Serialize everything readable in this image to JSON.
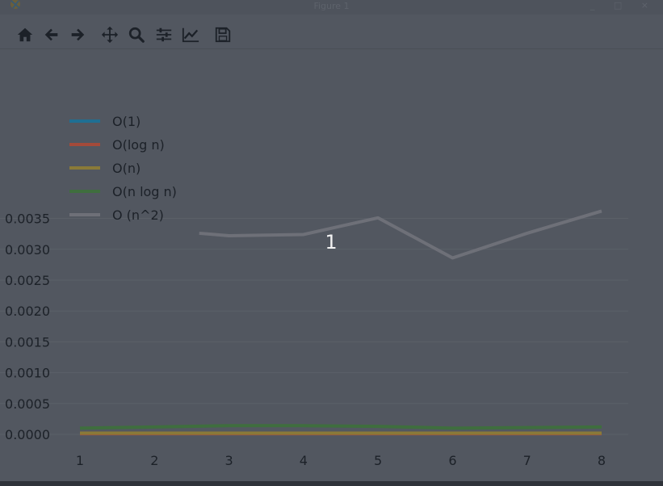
{
  "window": {
    "title": "Figure 1",
    "controls": "_ □ ×"
  },
  "toolbar": {
    "buttons": [
      {
        "icon": "home-icon"
      },
      {
        "icon": "back-arrow-icon"
      },
      {
        "icon": "forward-arrow-icon"
      },
      {
        "icon": "pan-move-icon"
      },
      {
        "icon": "zoom-magnifier-icon"
      },
      {
        "icon": "configure-subplots-icon"
      },
      {
        "icon": "edit-axis-curve-icon"
      },
      {
        "icon": "save-floppy-icon"
      }
    ]
  },
  "overlay": {
    "label": "1"
  },
  "colors": {
    "background": "#525760",
    "o1": "#1f6f93",
    "ologn": "#a44a3a",
    "on": "#8a7a38",
    "onlogn": "#3f6e3e",
    "on2": "#6e7078",
    "grid": "#5b6068",
    "text": "#1c2128"
  },
  "chart_data": {
    "type": "line",
    "x": [
      1,
      2,
      3,
      4,
      5,
      6,
      7,
      8
    ],
    "xlim": [
      1,
      8
    ],
    "ylim": [
      0.0,
      0.0036
    ],
    "xticks": [
      "1",
      "2",
      "3",
      "4",
      "5",
      "6",
      "7",
      "8"
    ],
    "yticks": [
      "0.0000",
      "0.0005",
      "0.0010",
      "0.0015",
      "0.0020",
      "0.0025",
      "0.0030",
      "0.0035"
    ],
    "grid": "horizontal",
    "legend_position": "top-left",
    "series": [
      {
        "name": "O(1)",
        "color": "#1f6f93",
        "values": [
          1e-05,
          1e-05,
          1e-05,
          1e-05,
          1e-05,
          1e-05,
          1e-05,
          1e-05
        ]
      },
      {
        "name": "O(log n)",
        "color": "#a44a3a",
        "values": [
          1e-05,
          1e-05,
          1e-05,
          1e-05,
          1e-05,
          1e-05,
          1e-05,
          1e-05
        ]
      },
      {
        "name": "O(n)",
        "color": "#8a7a38",
        "values": [
          2e-05,
          2e-05,
          2e-05,
          2e-05,
          2e-05,
          2e-05,
          2e-05,
          2e-05
        ]
      },
      {
        "name": "O(n log n)",
        "color": "#3f6e3e",
        "values": [
          0.0001,
          0.00012,
          0.00014,
          0.00014,
          0.00013,
          0.0001,
          0.00011,
          0.00012
        ]
      },
      {
        "name": "O (n^2)",
        "color": "#6e7078",
        "x": [
          2.6,
          3,
          4,
          5,
          6,
          7,
          8
        ],
        "values": [
          0.00326,
          0.00322,
          0.00324,
          0.00351,
          0.00286,
          0.00326,
          0.00362
        ]
      }
    ]
  }
}
